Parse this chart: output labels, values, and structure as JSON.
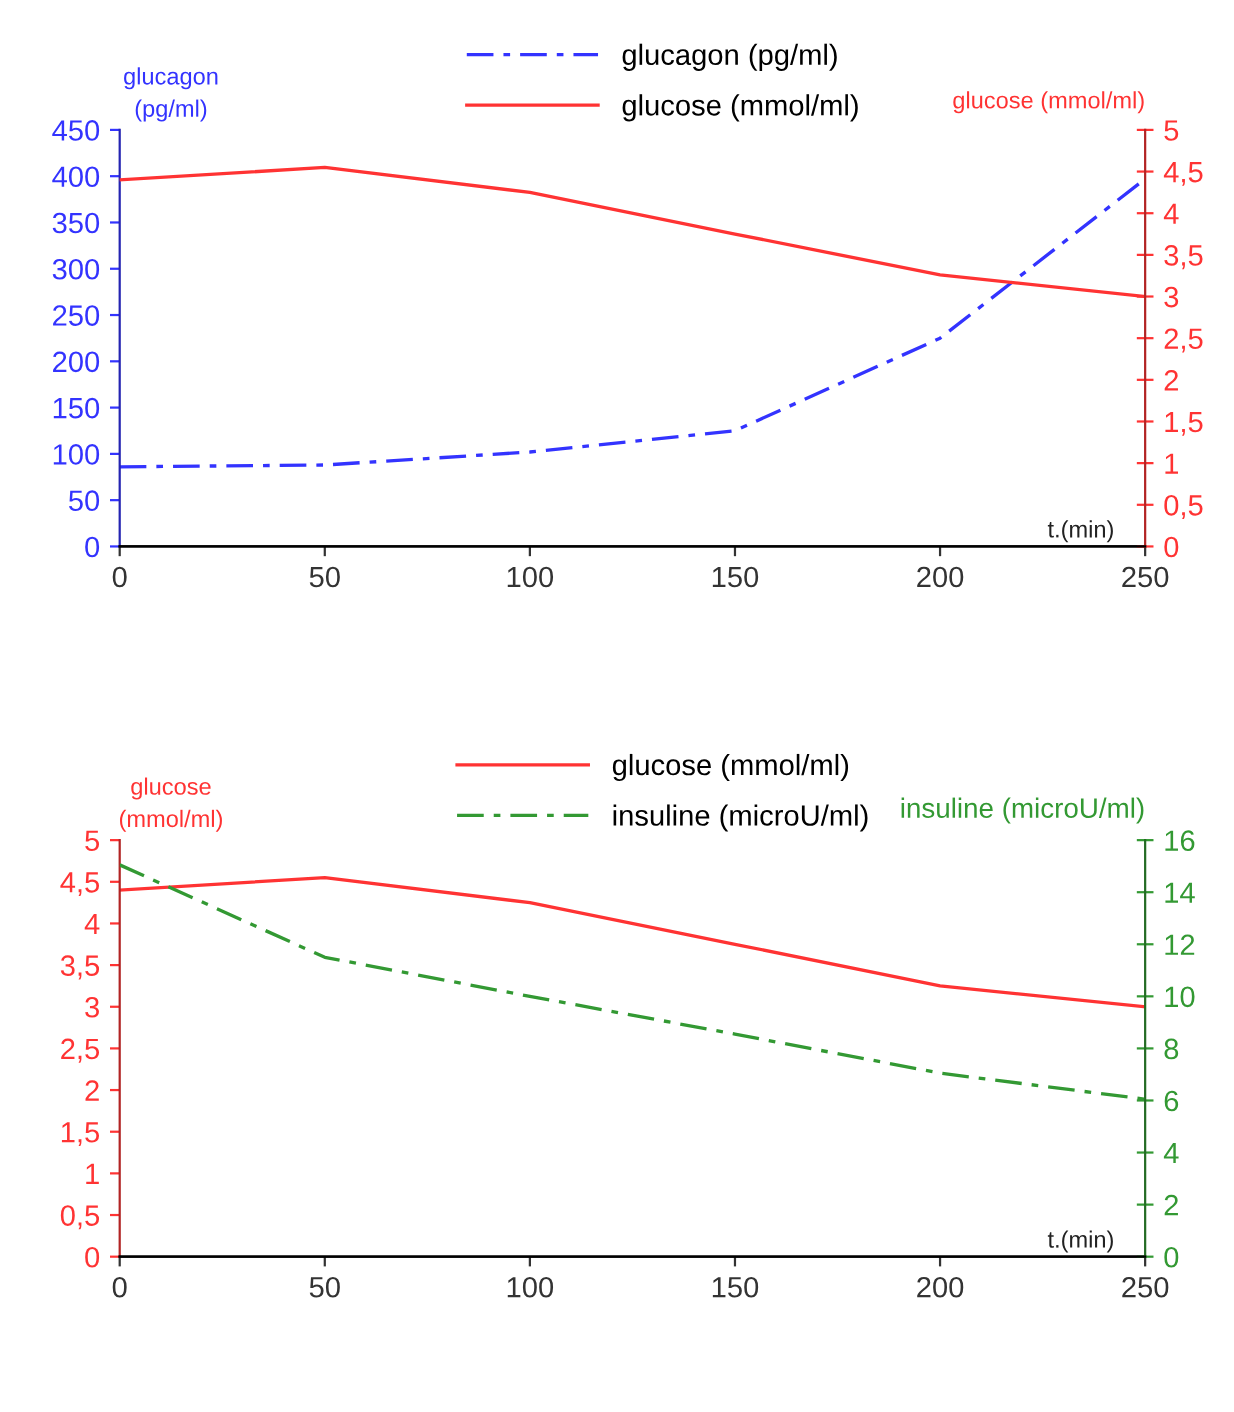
{
  "chart_data": [
    {
      "type": "line",
      "ylabel": "glucagon\n(pg/ml)",
      "y2label": "glucose (mmol/ml)",
      "xlabel": "t.(min)",
      "legend": "top",
      "grid": false,
      "marker": "none",
      "x": [
        0,
        50,
        100,
        150,
        200,
        250
      ],
      "xlim": [
        0,
        250
      ],
      "xticks": [
        0,
        50,
        100,
        150,
        200,
        250
      ],
      "ylim": [
        0,
        450
      ],
      "yticks": [
        0,
        50,
        100,
        150,
        200,
        250,
        300,
        350,
        400,
        450
      ],
      "y2lim": [
        0,
        5
      ],
      "y2ticks": [
        0,
        {
          "value": 0.5,
          "label": "0,5"
        },
        1,
        {
          "value": 1.5,
          "label": "1,5"
        },
        2,
        {
          "value": 2.5,
          "label": "2,5"
        },
        3,
        {
          "value": 3.5,
          "label": "3,5"
        },
        4,
        {
          "value": 4.5,
          "label": "4,5"
        },
        5
      ],
      "series": [
        {
          "name": "glucagon (pg/ml)",
          "color": "#3333ff",
          "line_style": "dashdot",
          "values": [
            86,
            88,
            102,
            125,
            225,
            397
          ]
        },
        {
          "name": "glucose (mmol/ml)",
          "color": "#ff3333",
          "line_style": "solid",
          "axis": "y2",
          "values": [
            4.4,
            4.55,
            4.25,
            3.75,
            3.26,
            3.0
          ]
        }
      ]
    },
    {
      "type": "line",
      "ylabel": "glucose\n(mmol/ml)",
      "y2label": "insuline (microU/ml)",
      "xlabel": "t.(min)",
      "legend": "top",
      "grid": false,
      "marker": "none",
      "x": [
        0,
        50,
        100,
        150,
        200,
        250
      ],
      "xlim": [
        0,
        250
      ],
      "xticks": [
        0,
        50,
        100,
        150,
        200,
        250
      ],
      "ylim": [
        0,
        5
      ],
      "yticks": [
        0,
        {
          "value": 0.5,
          "label": "0,5"
        },
        1,
        {
          "value": 1.5,
          "label": "1,5"
        },
        2,
        {
          "value": 2.5,
          "label": "2,5"
        },
        3,
        {
          "value": 3.5,
          "label": "3,5"
        },
        4,
        {
          "value": 4.5,
          "label": "4,5"
        },
        5
      ],
      "y2lim": [
        0,
        16
      ],
      "y2ticks": [
        0,
        2,
        4,
        6,
        8,
        10,
        12,
        14,
        16
      ],
      "series": [
        {
          "name": "glucose (mmol/ml)",
          "color": "#ff3333",
          "line_style": "solid",
          "values": [
            4.4,
            4.55,
            4.25,
            3.75,
            3.25,
            3.0
          ]
        },
        {
          "name": "insuline (microU/ml)",
          "color": "#339933",
          "line_style": "dashdot",
          "axis": "y2",
          "values": [
            15.05,
            11.5,
            10.0,
            8.55,
            7.05,
            6.05
          ]
        }
      ]
    }
  ]
}
